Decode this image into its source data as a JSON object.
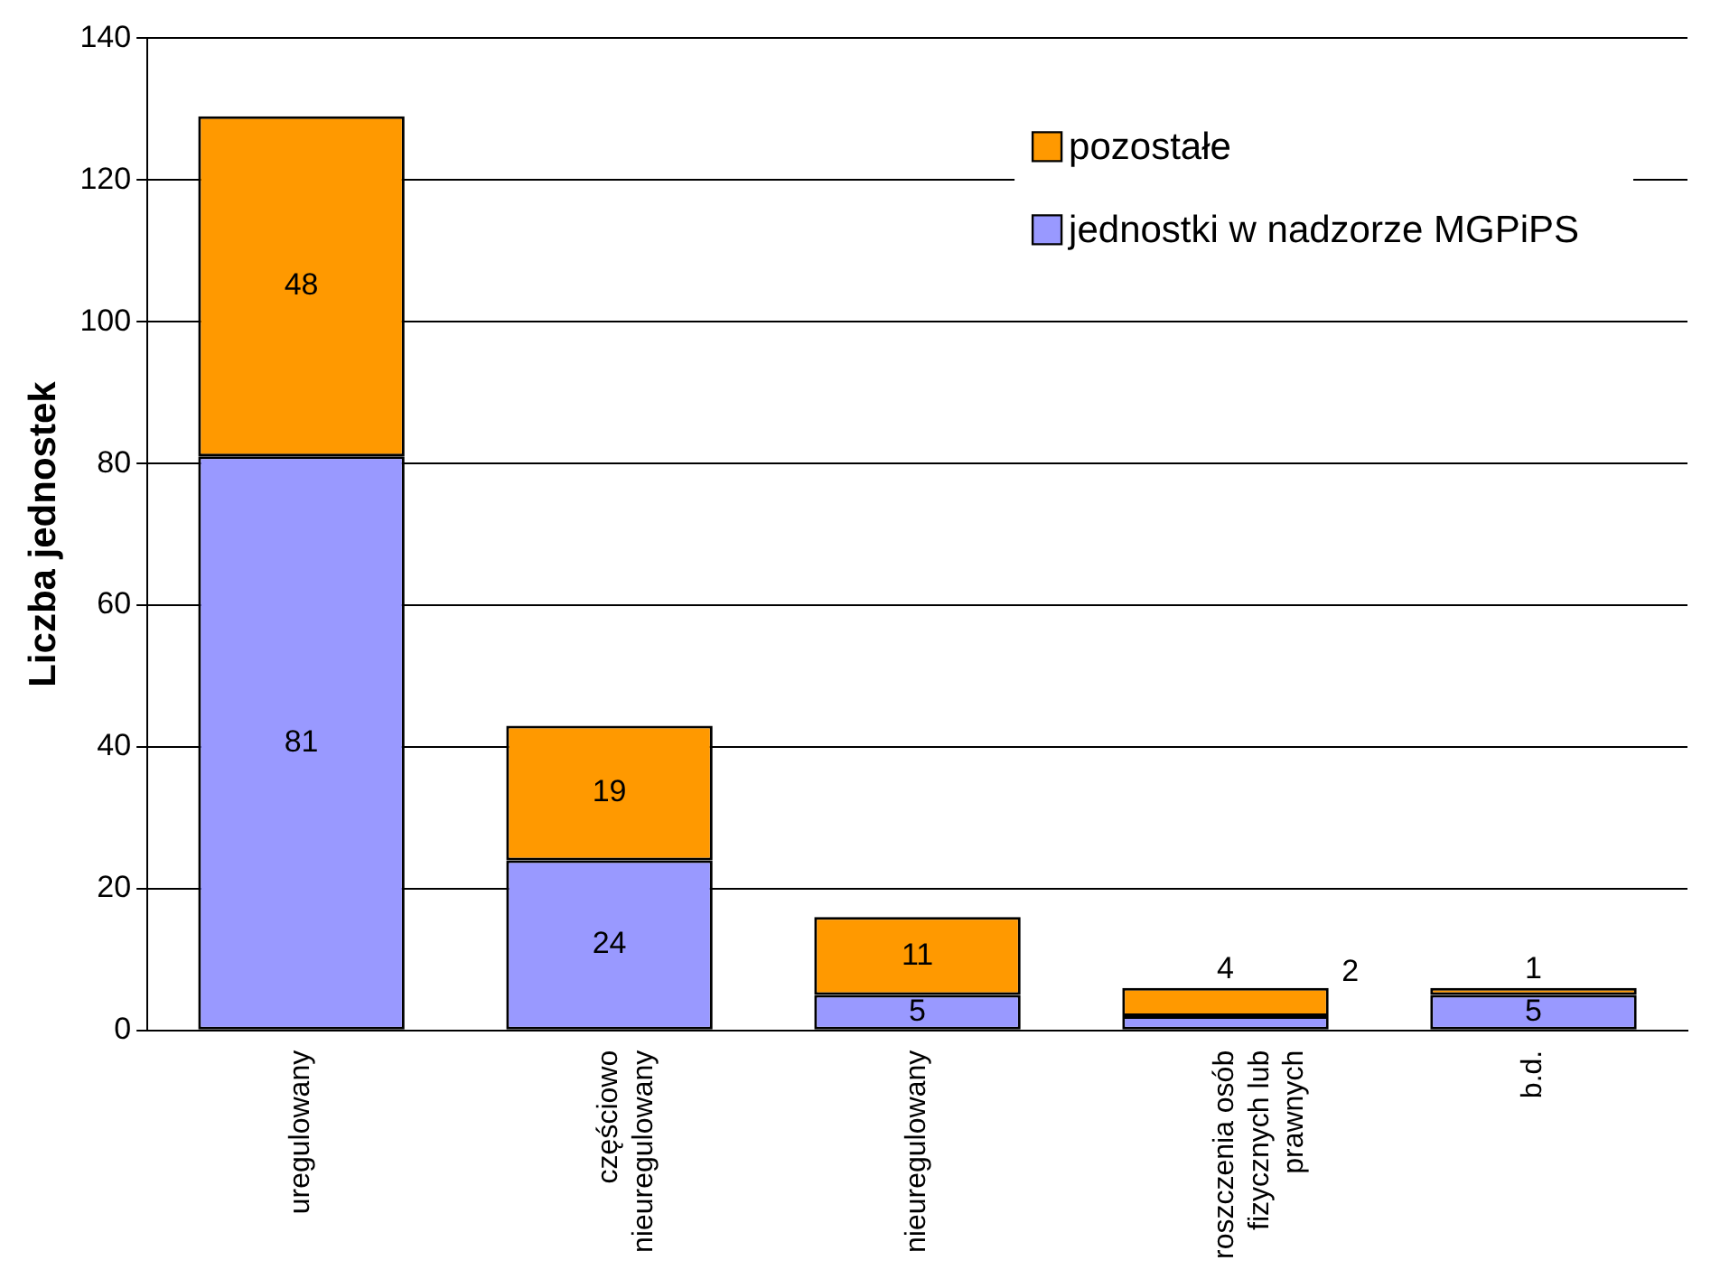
{
  "chart_data": {
    "type": "bar",
    "ylabel": "Liczba jednostek",
    "categories": [
      "uregulowany",
      "częściowo nieuregulowany",
      "nieuregulowany",
      "roszczenia osób fizycznych lub prawnych",
      "b.d."
    ],
    "series": [
      {
        "name": "jednostki w nadzorze MGPiPS",
        "color": "#9999ff",
        "values": [
          81,
          24,
          5,
          2,
          5
        ]
      },
      {
        "name": "pozostałe",
        "color": "#ff9900",
        "values": [
          48,
          19,
          11,
          4,
          1
        ]
      }
    ],
    "stacked": true,
    "ylim": [
      0,
      140
    ],
    "yticks": [
      0,
      20,
      40,
      60,
      80,
      100,
      120,
      140
    ],
    "grid": "y",
    "legend": "top right",
    "data_labels": true
  }
}
